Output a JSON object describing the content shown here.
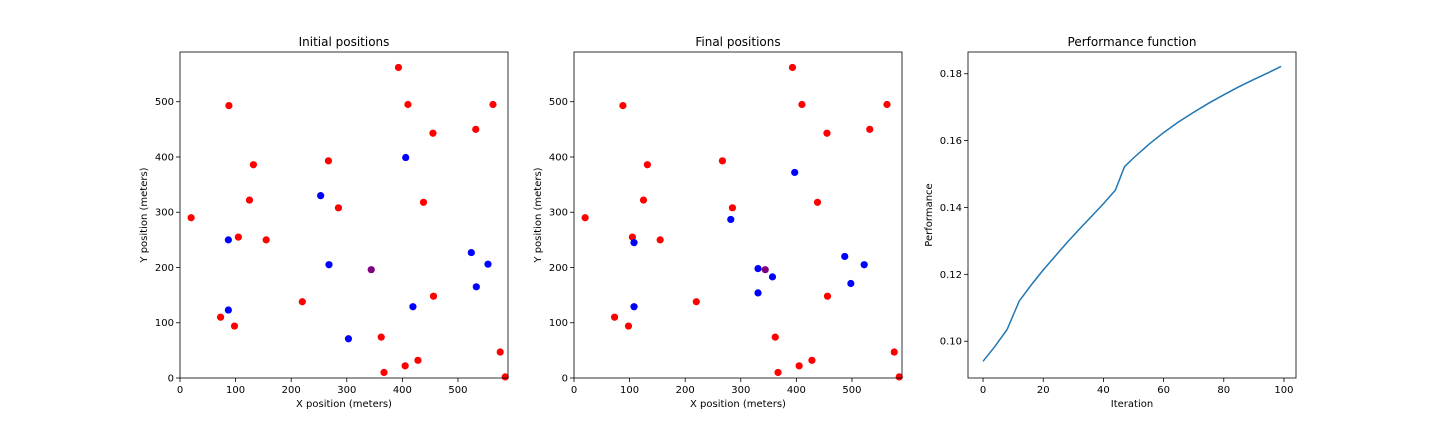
{
  "chart_data": [
    {
      "type": "scatter",
      "title": "Initial positions",
      "xlabel": "X position (meters)",
      "ylabel": "Y position (meters)",
      "xlim": [
        0,
        590
      ],
      "ylim": [
        0,
        590
      ],
      "xticks": [
        0,
        100,
        200,
        300,
        400,
        500
      ],
      "yticks": [
        0,
        100,
        200,
        300,
        400,
        500
      ],
      "grid": false,
      "series": [
        {
          "color": "#ff0000",
          "points": [
            [
              20,
              290
            ],
            [
              88,
              493
            ],
            [
              105,
              255
            ],
            [
              125,
              322
            ],
            [
              132,
              386
            ],
            [
              155,
              250
            ],
            [
              73,
              110
            ],
            [
              98,
              94
            ],
            [
              220,
              138
            ],
            [
              267,
              393
            ],
            [
              285,
              308
            ],
            [
              362,
              74
            ],
            [
              367,
              10
            ],
            [
              393,
              562
            ],
            [
              405,
              22
            ],
            [
              410,
              495
            ],
            [
              428,
              32
            ],
            [
              438,
              318
            ],
            [
              455,
              443
            ],
            [
              456,
              148
            ],
            [
              532,
              450
            ],
            [
              563,
              495
            ],
            [
              576,
              47
            ],
            [
              585,
              2
            ]
          ]
        },
        {
          "color": "#0000ff",
          "points": [
            [
              87,
              250
            ],
            [
              87,
              123
            ],
            [
              253,
              330
            ],
            [
              268,
              205
            ],
            [
              303,
              71
            ],
            [
              406,
              399
            ],
            [
              419,
              129
            ],
            [
              524,
              227
            ],
            [
              533,
              165
            ],
            [
              554,
              206
            ]
          ]
        },
        {
          "color": "#800080",
          "points": [
            [
              344,
              196
            ]
          ]
        }
      ]
    },
    {
      "type": "scatter",
      "title": "Final positions",
      "xlabel": "X position (meters)",
      "ylabel": "Y position (meters)",
      "xlim": [
        0,
        590
      ],
      "ylim": [
        0,
        590
      ],
      "xticks": [
        0,
        100,
        200,
        300,
        400,
        500
      ],
      "yticks": [
        0,
        100,
        200,
        300,
        400,
        500
      ],
      "grid": false,
      "series": [
        {
          "color": "#ff0000",
          "points": [
            [
              20,
              290
            ],
            [
              88,
              493
            ],
            [
              105,
              255
            ],
            [
              125,
              322
            ],
            [
              132,
              386
            ],
            [
              155,
              250
            ],
            [
              73,
              110
            ],
            [
              98,
              94
            ],
            [
              220,
              138
            ],
            [
              267,
              393
            ],
            [
              285,
              308
            ],
            [
              362,
              74
            ],
            [
              367,
              10
            ],
            [
              393,
              562
            ],
            [
              405,
              22
            ],
            [
              410,
              495
            ],
            [
              428,
              32
            ],
            [
              438,
              318
            ],
            [
              455,
              443
            ],
            [
              456,
              148
            ],
            [
              532,
              450
            ],
            [
              563,
              495
            ],
            [
              576,
              47
            ],
            [
              585,
              2
            ]
          ]
        },
        {
          "color": "#0000ff",
          "points": [
            [
              108,
              245
            ],
            [
              108,
              129
            ],
            [
              282,
              287
            ],
            [
              331,
              198
            ],
            [
              331,
              154
            ],
            [
              357,
              183
            ],
            [
              397,
              372
            ],
            [
              487,
              220
            ],
            [
              498,
              171
            ],
            [
              522,
              205
            ]
          ]
        },
        {
          "color": "#800080",
          "points": [
            [
              344,
              196
            ]
          ]
        }
      ]
    },
    {
      "type": "line",
      "title": "Performance function",
      "xlabel": "Iteration",
      "ylabel": "Performance",
      "xlim": [
        -5,
        104
      ],
      "ylim": [
        0.089,
        0.1865
      ],
      "xticks": [
        0,
        20,
        40,
        60,
        80,
        100
      ],
      "yticks": [
        0.1,
        0.12,
        0.14,
        0.16,
        0.18
      ],
      "ytick_labels": [
        "0.10",
        "0.12",
        "0.14",
        "0.16",
        "0.18"
      ],
      "grid": false,
      "series": [
        {
          "color": "#1f77b4",
          "x": [
            0,
            4,
            8,
            12,
            16,
            20,
            24,
            28,
            32,
            36,
            40,
            44,
            47,
            50,
            55,
            60,
            65,
            70,
            75,
            80,
            85,
            90,
            95,
            99
          ],
          "y": [
            0.094,
            0.0985,
            0.1035,
            0.112,
            0.1168,
            0.1213,
            0.1255,
            0.1296,
            0.1335,
            0.1373,
            0.1411,
            0.1452,
            0.1522,
            0.1548,
            0.1588,
            0.1624,
            0.1656,
            0.1685,
            0.1712,
            0.1737,
            0.1761,
            0.1783,
            0.1804,
            0.1822
          ]
        }
      ]
    }
  ]
}
